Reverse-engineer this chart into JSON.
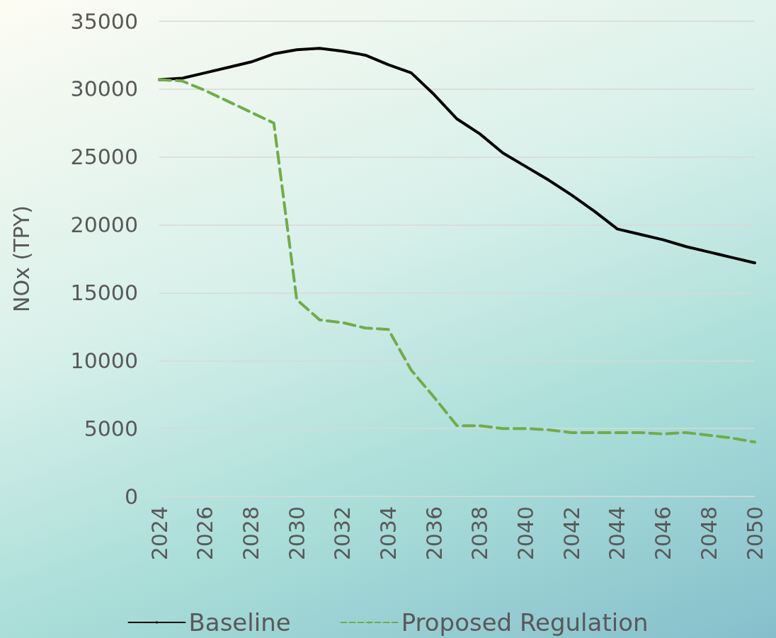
{
  "chart_data": {
    "type": "line",
    "ylabel": "NOx (TPY)",
    "categories": [
      "2024",
      null,
      "2026",
      null,
      "2028",
      null,
      "2030",
      null,
      "2032",
      null,
      "2034",
      null,
      "2036",
      null,
      "2038",
      null,
      "2040",
      null,
      "2042",
      null,
      "2044",
      null,
      "2046",
      null,
      "2048",
      null,
      "2050"
    ],
    "series": [
      {
        "name": "Baseline",
        "color": "#000000",
        "line_style": "solid",
        "values": [
          30700,
          30800,
          31200,
          31600,
          32000,
          32600,
          32900,
          33000,
          32800,
          32500,
          31800,
          31200,
          29600,
          27800,
          26700,
          25300,
          24300,
          23300,
          22200,
          21000,
          19700,
          19300,
          18900,
          18400,
          18000,
          17600,
          17200
        ]
      },
      {
        "name": "Proposed Regulation",
        "color": "#70ad47",
        "line_style": "dashed",
        "values": [
          30700,
          30600,
          29900,
          29100,
          28300,
          27500,
          14500,
          13000,
          12800,
          12400,
          12300,
          9300,
          7300,
          5200,
          5200,
          5000,
          5000,
          4900,
          4700,
          4700,
          4700,
          4700,
          4600,
          4700,
          4500,
          4300,
          4000
        ]
      }
    ],
    "ylim": [
      0,
      35000
    ],
    "yticks": [
      0,
      5000,
      10000,
      15000,
      20000,
      25000,
      30000,
      35000
    ],
    "grid": "y",
    "legend": "bottom",
    "marker": "none"
  }
}
